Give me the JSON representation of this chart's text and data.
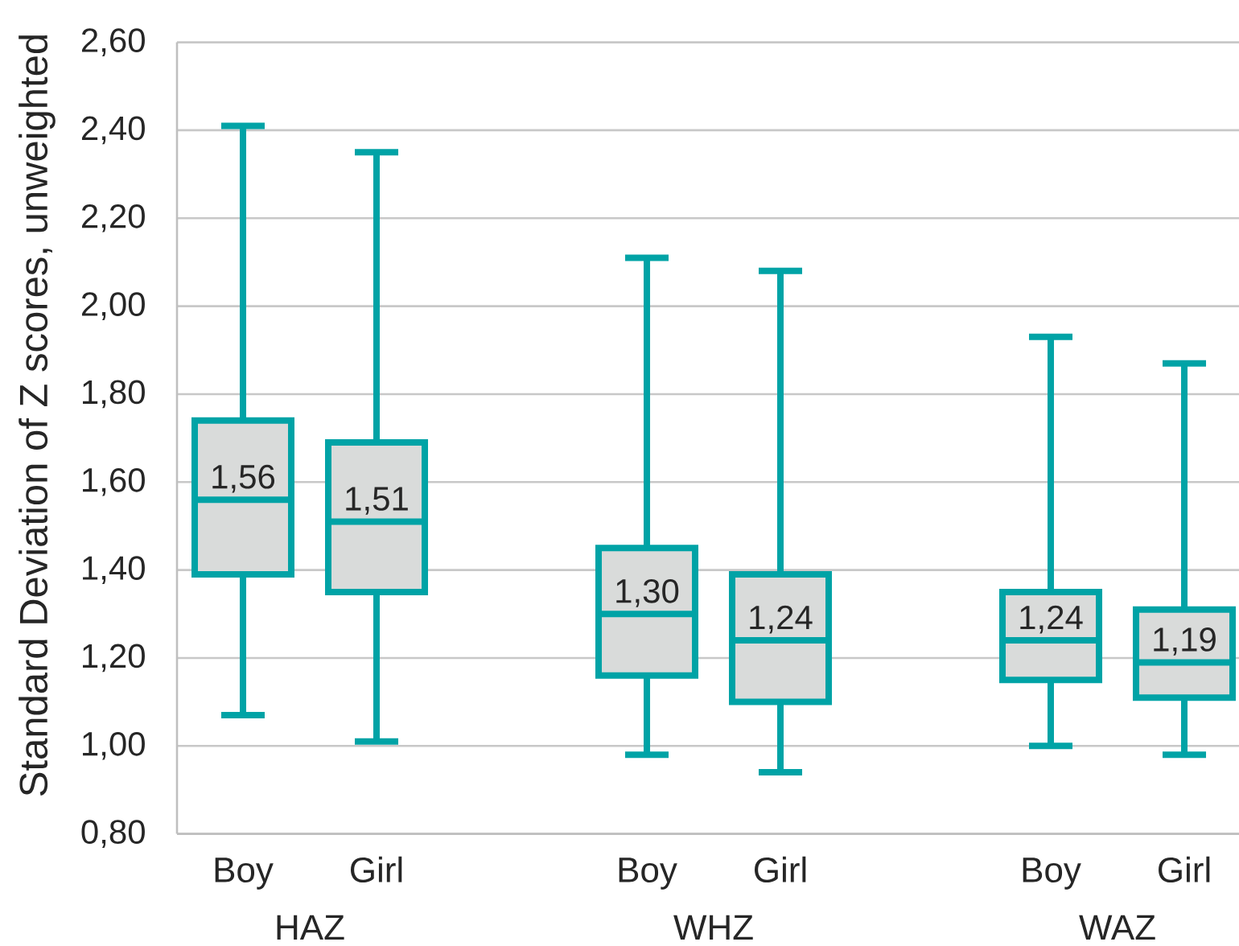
{
  "chart_data": {
    "type": "box",
    "ylabel": "Standard Deviation of Z scores, unweighted",
    "categories": [
      "Boy",
      "Girl",
      "Boy",
      "Girl",
      "Boy",
      "Girl"
    ],
    "color": "#00a3a6",
    "boxes": [
      {
        "low": 1.07,
        "q1": 1.39,
        "median": 1.56,
        "q3": 1.74,
        "high": 2.41
      },
      {
        "low": 1.01,
        "q1": 1.35,
        "median": 1.51,
        "q3": 1.69,
        "high": 2.35
      },
      {
        "low": 0.98,
        "q1": 1.16,
        "median": 1.3,
        "q3": 1.45,
        "high": 2.11
      },
      {
        "low": 0.94,
        "q1": 1.1,
        "median": 1.24,
        "q3": 1.39,
        "high": 2.08
      },
      {
        "low": 1.0,
        "q1": 1.15,
        "median": 1.24,
        "q3": 1.35,
        "high": 1.93
      },
      {
        "low": 0.98,
        "q1": 1.11,
        "median": 1.19,
        "q3": 1.31,
        "high": 1.87
      }
    ],
    "value_labels": [
      "1,56",
      "1,51",
      "1,30",
      "1,24",
      "1,24",
      "1,19"
    ],
    "annotations": [
      "HAZ",
      "WHZ",
      "WAZ"
    ],
    "ylim": [
      0.8,
      2.6
    ],
    "yticks": [
      {
        "value": 0.8,
        "label": "0,80"
      },
      {
        "value": 1.0,
        "label": "1,00"
      },
      {
        "value": 1.2,
        "label": "1,20"
      },
      {
        "value": 1.4,
        "label": "1,40"
      },
      {
        "value": 1.6,
        "label": "1,60"
      },
      {
        "value": 1.8,
        "label": "1,80"
      },
      {
        "value": 2.0,
        "label": "2,00"
      },
      {
        "value": 2.2,
        "label": "2,20"
      },
      {
        "value": 2.4,
        "label": "2,40"
      },
      {
        "value": 2.6,
        "label": "2,60"
      }
    ],
    "grid": "y"
  }
}
